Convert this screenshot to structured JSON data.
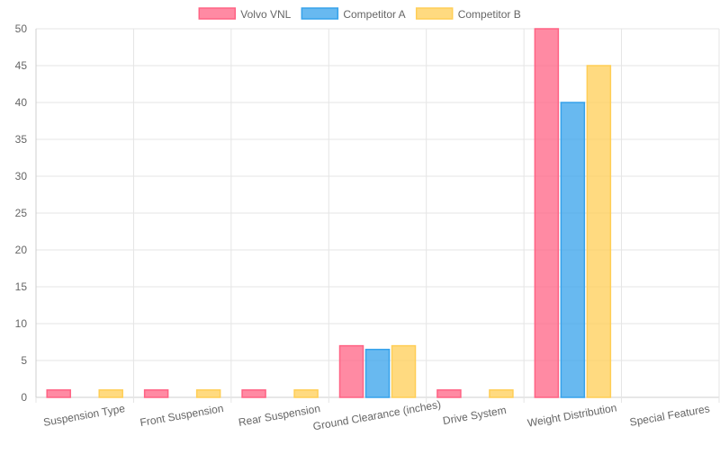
{
  "chart_data": {
    "type": "bar",
    "categories": [
      "Suspension Type",
      "Front Suspension",
      "Rear Suspension",
      "Ground Clearance (inches)",
      "Drive System",
      "Weight Distribution",
      "Special Features"
    ],
    "series": [
      {
        "name": "Volvo VNL",
        "color": "#ff6384",
        "values": [
          1,
          1,
          1,
          7,
          1,
          50,
          0
        ]
      },
      {
        "name": "Competitor A",
        "color": "#36a2eb",
        "values": [
          0,
          0,
          0,
          6.5,
          0,
          40,
          0
        ]
      },
      {
        "name": "Competitor B",
        "color": "#ffce56",
        "values": [
          1,
          1,
          1,
          7,
          1,
          45,
          0
        ]
      }
    ],
    "ylim": [
      0,
      50
    ],
    "yticks": [
      0,
      5,
      10,
      15,
      20,
      25,
      30,
      35,
      40,
      45,
      50
    ],
    "grid": true,
    "legend_position": "top"
  }
}
